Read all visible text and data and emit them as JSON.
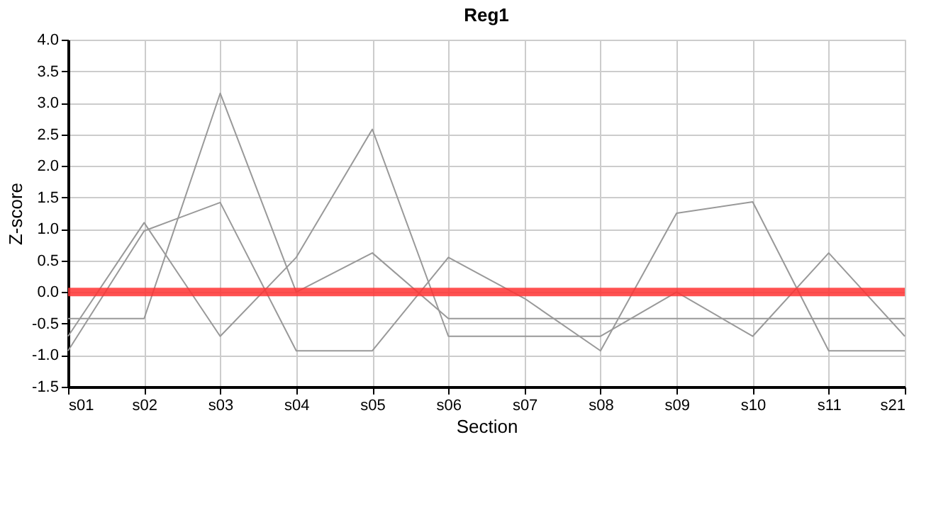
{
  "chart_data": {
    "type": "line",
    "title": "Reg1",
    "xlabel": "Section",
    "ylabel": "Z-score",
    "categories": [
      "s01",
      "s02",
      "s03",
      "s04",
      "s05",
      "s06",
      "s07",
      "s08",
      "s09",
      "s10",
      "s11",
      "s21"
    ],
    "series": [
      {
        "color": "#999999",
        "values": [
          -0.42,
          -0.42,
          3.15,
          0.0,
          0.62,
          -0.42,
          -0.42,
          -0.42,
          -0.42,
          -0.42,
          -0.42,
          -0.42
        ]
      },
      {
        "color": "#999999",
        "values": [
          -0.7,
          1.1,
          -0.7,
          0.55,
          2.58,
          -0.7,
          -0.7,
          -0.7,
          0.0,
          -0.7,
          0.62,
          -0.7
        ]
      },
      {
        "color": "#999999",
        "values": [
          -0.93,
          0.97,
          1.42,
          -0.93,
          -0.93,
          0.55,
          -0.1,
          -0.93,
          1.25,
          1.43,
          -0.93,
          -0.93
        ]
      }
    ],
    "ylim": [
      -1.5,
      4.0
    ],
    "yticks": [
      {
        "value": -1.5,
        "label": "-1.5"
      },
      {
        "value": -1.0,
        "label": "-1.0"
      },
      {
        "value": -0.5,
        "label": "-0.5"
      },
      {
        "value": 0,
        "label": "0.0"
      },
      {
        "value": 0.5,
        "label": "0.5"
      },
      {
        "value": 1.0,
        "label": "1.0"
      },
      {
        "value": 1.5,
        "label": "1.5"
      },
      {
        "value": 2.0,
        "label": "2.0"
      },
      {
        "value": 2.5,
        "label": "2.5"
      },
      {
        "value": 3.0,
        "label": "3.0"
      },
      {
        "value": 3.5,
        "label": "3.5"
      },
      {
        "value": 4.0,
        "label": "4.0"
      }
    ],
    "ref_lines": [
      {
        "axis": "y",
        "value": 0,
        "color": "#ff3333"
      }
    ],
    "grid": true,
    "line_style": "solid",
    "marker": "none"
  }
}
